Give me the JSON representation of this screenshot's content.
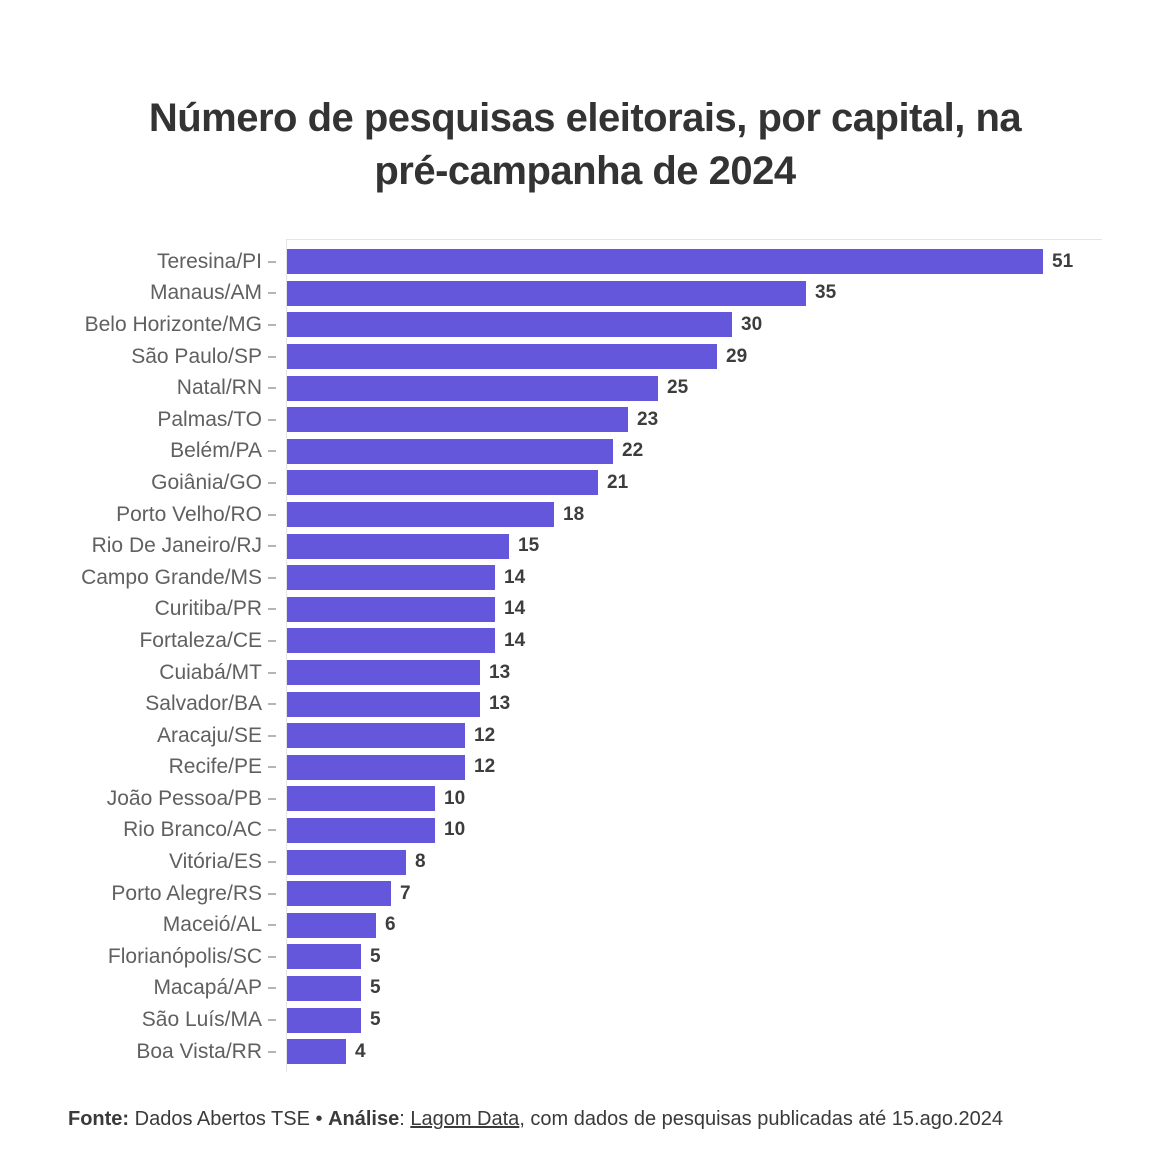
{
  "title": "Número de pesquisas eleitorais, por capital, na\npré-campanha de 2024",
  "colors": {
    "background": "#ffffff",
    "bar": "#6457DB",
    "title": "#333333",
    "category_label": "#606060",
    "value_label": "#3d3d3d",
    "axis_line": "#e5e5e5",
    "tick": "#b5b5b5",
    "footer": "#3a3a3a"
  },
  "chart_data": {
    "type": "bar",
    "orientation": "horizontal",
    "title": "Número de pesquisas eleitorais, por capital, na pré-campanha de 2024",
    "xlabel": "",
    "ylabel": "",
    "xlim": [
      0,
      55
    ],
    "grid": false,
    "bar_labels": true,
    "legend": null,
    "categories": [
      "Teresina/PI",
      "Manaus/AM",
      "Belo Horizonte/MG",
      "São Paulo/SP",
      "Natal/RN",
      "Palmas/TO",
      "Belém/PA",
      "Goiânia/GO",
      "Porto Velho/RO",
      "Rio De Janeiro/RJ",
      "Campo Grande/MS",
      "Curitiba/PR",
      "Fortaleza/CE",
      "Cuiabá/MT",
      "Salvador/BA",
      "Aracaju/SE",
      "Recife/PE",
      "João Pessoa/PB",
      "Rio Branco/AC",
      "Vitória/ES",
      "Porto Alegre/RS",
      "Maceió/AL",
      "Florianópolis/SC",
      "Macapá/AP",
      "São Luís/MA",
      "Boa Vista/RR"
    ],
    "values": [
      51,
      35,
      30,
      29,
      25,
      23,
      22,
      21,
      18,
      15,
      14,
      14,
      14,
      13,
      13,
      12,
      12,
      10,
      10,
      8,
      7,
      6,
      5,
      5,
      5,
      4
    ]
  },
  "footer": {
    "segments": [
      {
        "text": "Fonte:",
        "bold": true,
        "underline": false,
        "link": false
      },
      {
        "text": " Dados Abertos TSE • ",
        "bold": false,
        "underline": false,
        "link": false
      },
      {
        "text": "Análise",
        "bold": true,
        "underline": false,
        "link": false
      },
      {
        "text": ": ",
        "bold": false,
        "underline": false,
        "link": false
      },
      {
        "text": "Lagom Data",
        "bold": false,
        "underline": true,
        "link": true
      },
      {
        "text": ", com dados de pesquisas publicadas até 15.ago.2024",
        "bold": false,
        "underline": false,
        "link": false
      }
    ]
  }
}
